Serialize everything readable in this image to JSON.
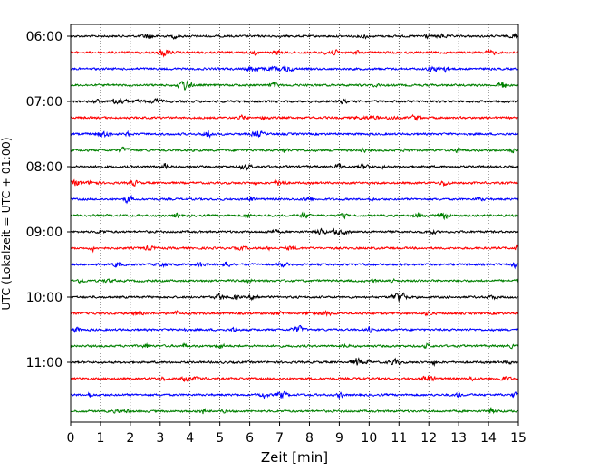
{
  "chart_data": {
    "type": "line",
    "xlabel": "Zeit  [min]",
    "ylabel": "UTC (Lokalzeit = UTC + 01:00)",
    "xlim": [
      0,
      15
    ],
    "x_ticks": [
      "0",
      "1",
      "2",
      "3",
      "4",
      "5",
      "6",
      "7",
      "8",
      "9",
      "10",
      "11",
      "12",
      "13",
      "14",
      "15"
    ],
    "y_ticks": [
      "06:00",
      "07:00",
      "08:00",
      "09:00",
      "10:00",
      "11:00"
    ],
    "trace_interval_min": 15,
    "trace_colors": [
      "#000000",
      "#ff0000",
      "#0000ff",
      "#008000"
    ],
    "grid": "vertical dotted",
    "series": [
      {
        "start": "06:00"
      },
      {
        "start": "06:15"
      },
      {
        "start": "06:30"
      },
      {
        "start": "06:45"
      },
      {
        "start": "07:00"
      },
      {
        "start": "07:15"
      },
      {
        "start": "07:30"
      },
      {
        "start": "07:45"
      },
      {
        "start": "08:00"
      },
      {
        "start": "08:15"
      },
      {
        "start": "08:30"
      },
      {
        "start": "08:45"
      },
      {
        "start": "09:00"
      },
      {
        "start": "09:15"
      },
      {
        "start": "09:30"
      },
      {
        "start": "09:45"
      },
      {
        "start": "10:00"
      },
      {
        "start": "10:15"
      },
      {
        "start": "10:30"
      },
      {
        "start": "10:45"
      },
      {
        "start": "11:00"
      },
      {
        "start": "11:15"
      },
      {
        "start": "11:30"
      },
      {
        "start": "11:45"
      }
    ]
  }
}
